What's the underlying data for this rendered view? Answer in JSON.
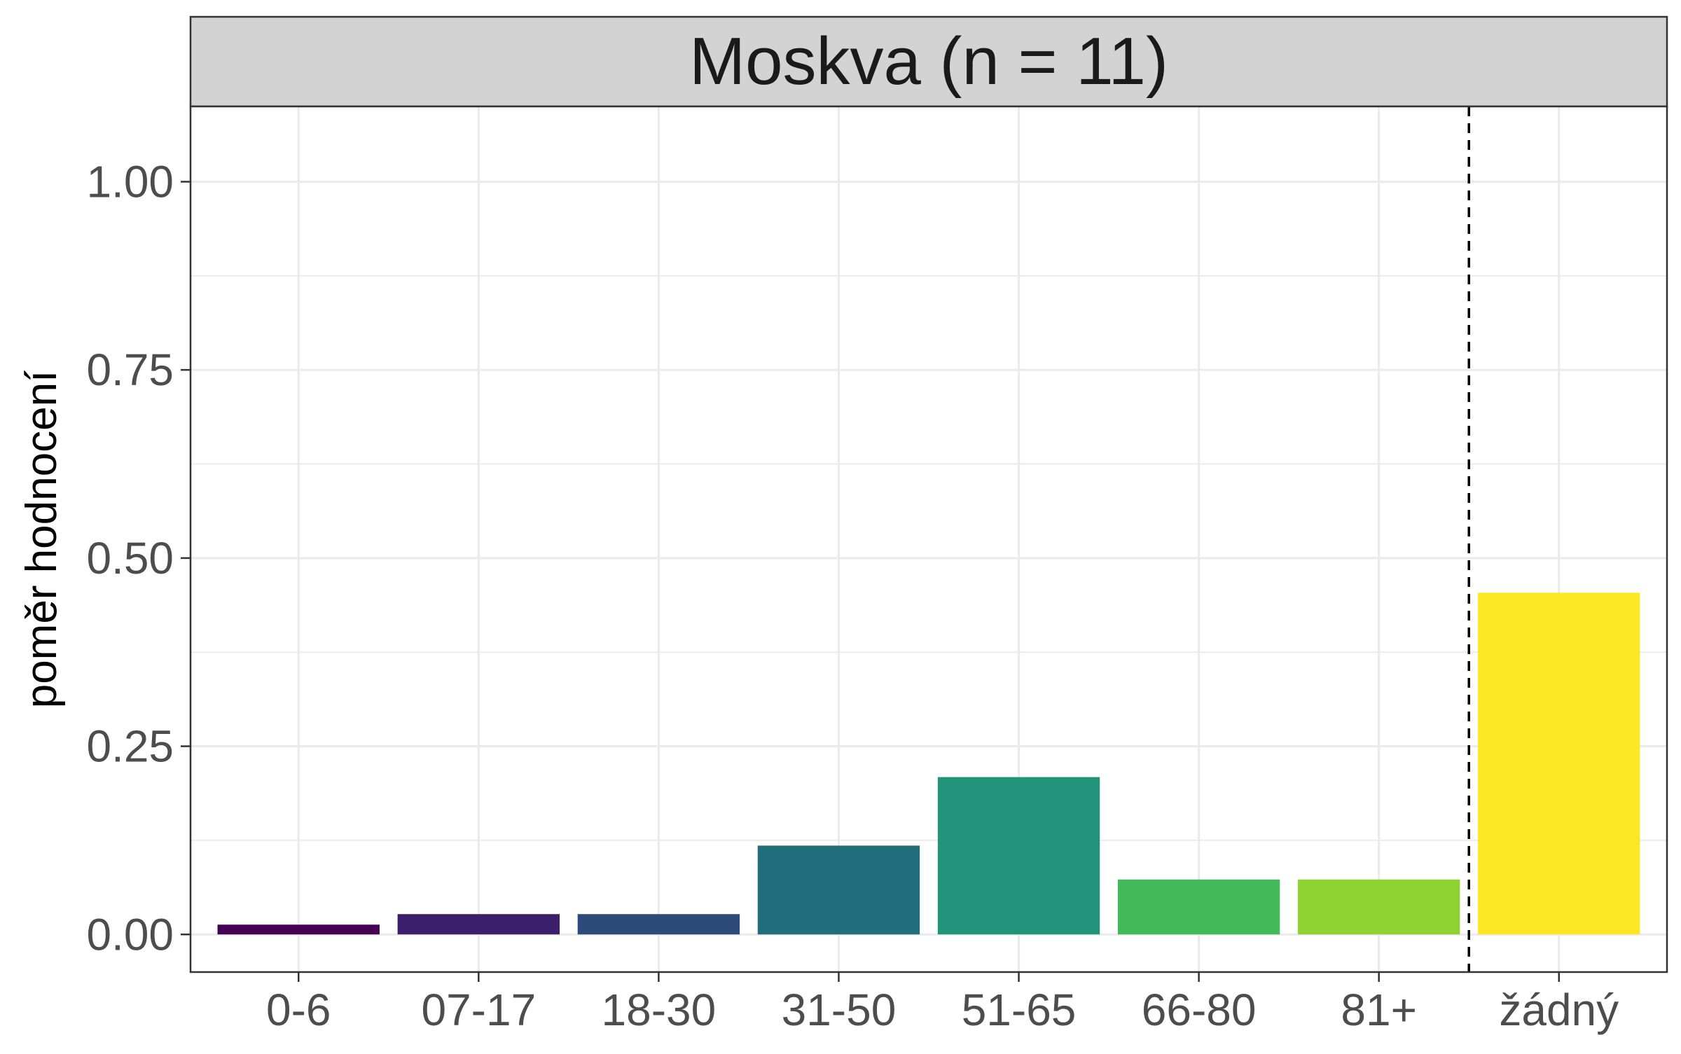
{
  "chart_data": {
    "type": "bar",
    "title": "Moskva (n = 11)",
    "xlabel": "",
    "ylabel": "poměr hodnocení",
    "categories": [
      "0-6",
      "07-17",
      "18-30",
      "31-50",
      "51-65",
      "66-80",
      "81+",
      "žádný"
    ],
    "values": [
      0.013,
      0.027,
      0.027,
      0.118,
      0.209,
      0.073,
      0.073,
      0.454
    ],
    "colors": [
      "#440154",
      "#3B1F6B",
      "#2D4A7A",
      "#216D7C",
      "#20937A",
      "#43B95A",
      "#8ED32F",
      "#FDE725"
    ],
    "ylim": [
      -0.05,
      1.1
    ],
    "yticks": [
      0.0,
      0.25,
      0.5,
      0.75,
      1.0
    ],
    "ytick_labels": [
      "0.00",
      "0.25",
      "0.50",
      "0.75",
      "1.00"
    ],
    "reference_line": {
      "between": [
        "81+",
        "žádný"
      ],
      "style": "dashed"
    },
    "grid": true,
    "strip_background": "#D3D3D3"
  }
}
